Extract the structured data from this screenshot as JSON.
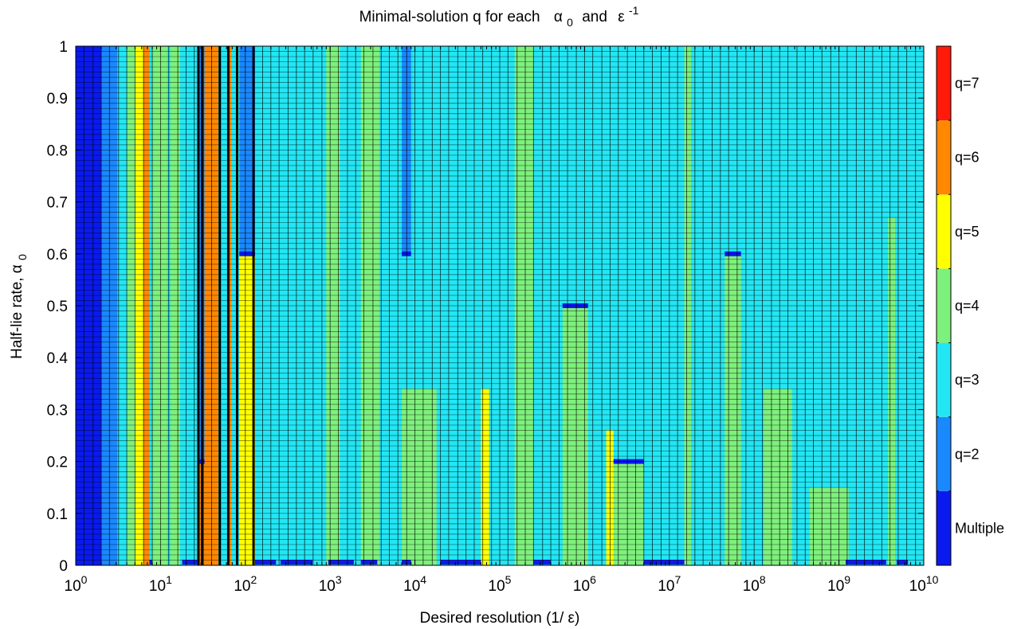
{
  "chart_data": {
    "type": "heatmap",
    "title": "Minimal-solution q for each",
    "title_symbols": {
      "alpha": "α",
      "alpha_sub": "0",
      "and": "and",
      "eps": "ε",
      "eps_sup": "-1"
    },
    "xlabel": "Desired resolution (1/ ε)",
    "ylabel_main": "Half-lie rate, ",
    "ylabel_symbol": "α",
    "ylabel_sub": "0",
    "x_scale": "log",
    "xlim": [
      1,
      10000000000
    ],
    "ylim": [
      0,
      1
    ],
    "x_tick_base": "10",
    "x_tick_exponents": [
      "0",
      "1",
      "2",
      "3",
      "4",
      "5",
      "6",
      "7",
      "8",
      "9",
      "10"
    ],
    "y_tick_labels": [
      "0",
      "0.1",
      "0.2",
      "0.3",
      "0.4",
      "0.5",
      "0.6",
      "0.7",
      "0.8",
      "0.9",
      "1"
    ],
    "y_tick_values": [
      0,
      0.1,
      0.2,
      0.3,
      0.4,
      0.5,
      0.6,
      0.7,
      0.8,
      0.9,
      1
    ],
    "colorbar": {
      "labels": [
        "Multiple",
        "q=2",
        "q=3",
        "q=4",
        "q=5",
        "q=6",
        "q=7"
      ],
      "colors": [
        "#0a1aee",
        "#1a88ff",
        "#22e6f4",
        "#7ef07c",
        "#ffff00",
        "#ff8800",
        "#ff1a0a"
      ]
    },
    "background_category": 2,
    "columns": [
      {
        "x0": 1,
        "x1": 2,
        "cat": 0
      },
      {
        "x0": 2,
        "x1": 3.1,
        "cat": 1
      },
      {
        "x0": 4,
        "x1": 5,
        "cat": 3
      },
      {
        "x0": 5,
        "x1": 6.3,
        "cat": 4
      },
      {
        "x0": 6.3,
        "x1": 7.4,
        "cat": 5
      },
      {
        "x0": 8,
        "x1": 12,
        "cat": 3
      },
      {
        "x0": 13,
        "x1": 17,
        "cat": 3
      },
      {
        "x0": 27,
        "x1": 29,
        "cat": 5
      },
      {
        "x0": 29,
        "x1": 33,
        "cat": 1,
        "y0": 0.205,
        "y1": 1
      },
      {
        "x0": 29,
        "x1": 33,
        "cat": 5,
        "y0": 0,
        "y1": 0.205
      },
      {
        "x0": 33,
        "x1": 48,
        "cat": 5
      },
      {
        "x0": 63,
        "x1": 68,
        "cat": 5
      },
      {
        "x0": 85,
        "x1": 130,
        "cat": 1,
        "y0": 0.6,
        "y1": 1
      },
      {
        "x0": 85,
        "x1": 130,
        "cat": 4,
        "y0": 0,
        "y1": 0.6
      },
      {
        "x0": 900,
        "x1": 1300,
        "cat": 3
      },
      {
        "x0": 2300,
        "x1": 3800,
        "cat": 3
      },
      {
        "x0": 7000,
        "x1": 9000,
        "cat": 1,
        "y0": 0.6,
        "y1": 1
      },
      {
        "x0": 7000,
        "x1": 18000,
        "cat": 3,
        "y0": 0,
        "y1": 0.34
      },
      {
        "x0": 60000,
        "x1": 75000,
        "cat": 4,
        "y0": 0,
        "y1": 0.34
      },
      {
        "x0": 150000,
        "x1": 250000,
        "cat": 3
      },
      {
        "x0": 550000,
        "x1": 1100000,
        "cat": 3,
        "y0": 0,
        "y1": 0.5
      },
      {
        "x0": 1800000,
        "x1": 2200000,
        "cat": 4,
        "y0": 0,
        "y1": 0.26
      },
      {
        "x0": 2200000,
        "x1": 5000000,
        "cat": 3,
        "y0": 0,
        "y1": 0.2
      },
      {
        "x0": 15000000,
        "x1": 18000000,
        "cat": 3
      },
      {
        "x0": 45000000,
        "x1": 70000000,
        "cat": 3,
        "y0": 0,
        "y1": 0.6
      },
      {
        "x0": 130000000,
        "x1": 280000000,
        "cat": 3,
        "y0": 0,
        "y1": 0.34
      },
      {
        "x0": 450000000,
        "x1": 1300000000,
        "cat": 3,
        "y0": 0,
        "y1": 0.15
      },
      {
        "x0": 3800000000,
        "x1": 4600000000,
        "cat": 3,
        "y0": 0,
        "y1": 0.67
      }
    ],
    "multiple_markers": [
      {
        "x0": 7.4,
        "x1": 8,
        "y": 0
      },
      {
        "x0": 18,
        "x1": 27,
        "y": 0
      },
      {
        "x0": 29,
        "x1": 33,
        "y": 0.2
      },
      {
        "x0": 85,
        "x1": 130,
        "y": 0.6
      },
      {
        "x0": 130,
        "x1": 230,
        "y": 0
      },
      {
        "x0": 260,
        "x1": 620,
        "y": 0
      },
      {
        "x0": 950,
        "x1": 1900,
        "y": 0
      },
      {
        "x0": 2300,
        "x1": 3600,
        "y": 0
      },
      {
        "x0": 7000,
        "x1": 9000,
        "y": 0
      },
      {
        "x0": 7000,
        "x1": 9000,
        "y": 0.6
      },
      {
        "x0": 20000,
        "x1": 60000,
        "y": 0
      },
      {
        "x0": 250000,
        "x1": 400000,
        "y": 0
      },
      {
        "x0": 550000,
        "x1": 1100000,
        "y": 0.5
      },
      {
        "x0": 2200000,
        "x1": 5000000,
        "y": 0.2
      },
      {
        "x0": 5000000,
        "x1": 15000000,
        "y": 0
      },
      {
        "x0": 45000000,
        "x1": 70000000,
        "y": 0.6
      },
      {
        "x0": 1200000000,
        "x1": 3600000000,
        "y": 0
      },
      {
        "x0": 4800000000,
        "x1": 6500000000,
        "y": 0
      }
    ],
    "dark_bars": [
      28,
      31,
      50,
      63,
      80,
      125
    ]
  }
}
